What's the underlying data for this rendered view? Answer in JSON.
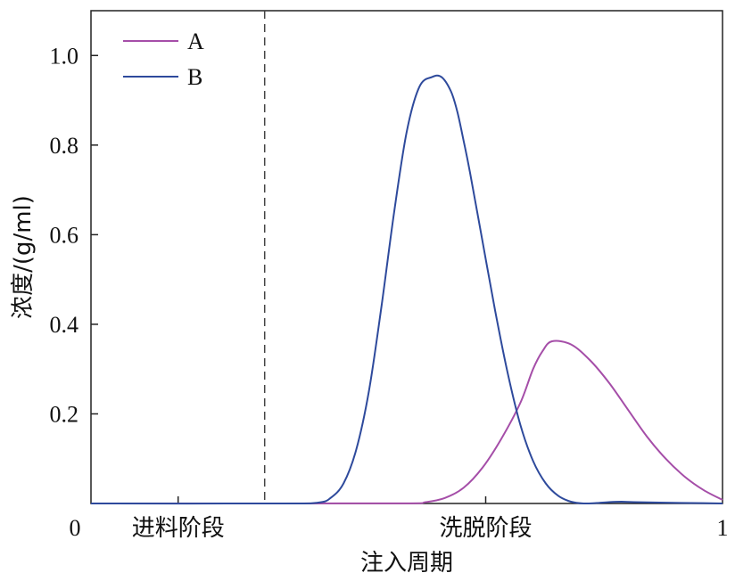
{
  "chart_data": {
    "type": "line",
    "xlabel": "注入周期",
    "ylabel": "浓度/(g/ml)",
    "xlim": [
      0,
      1
    ],
    "ylim": [
      0,
      1.1
    ],
    "x_ticks": [
      {
        "value": 0,
        "label": "0"
      },
      {
        "value": 1,
        "label": "1"
      }
    ],
    "x_minor_ticks": [
      0.138,
      0.625
    ],
    "y_ticks": [
      {
        "value": 0.2,
        "label": "0.2"
      },
      {
        "value": 0.4,
        "label": "0.4"
      },
      {
        "value": 0.6,
        "label": "0.6"
      },
      {
        "value": 0.8,
        "label": "0.8"
      },
      {
        "value": 1.0,
        "label": "1.0"
      }
    ],
    "vline": {
      "x": 0.275,
      "style": "dashed"
    },
    "region_labels": [
      {
        "x": 0.138,
        "text": "进料阶段"
      },
      {
        "x": 0.625,
        "text": "洗脱阶段"
      }
    ],
    "legend_position": "top-left",
    "grid": false,
    "series": [
      {
        "name": "A",
        "color": "#a54ea8",
        "x": [
          0,
          0.3,
          0.5,
          0.53,
          0.56,
          0.59,
          0.62,
          0.65,
          0.68,
          0.7,
          0.715,
          0.73,
          0.76,
          0.79,
          0.82,
          0.85,
          0.88,
          0.91,
          0.94,
          0.97,
          1.0
        ],
        "y": [
          0,
          0,
          0.0003,
          0.003,
          0.012,
          0.035,
          0.08,
          0.145,
          0.225,
          0.3,
          0.34,
          0.362,
          0.355,
          0.32,
          0.27,
          0.21,
          0.15,
          0.1,
          0.06,
          0.03,
          0.008
        ]
      },
      {
        "name": "B",
        "color": "#2e4a9c",
        "x": [
          0,
          0.3,
          0.36,
          0.38,
          0.4,
          0.42,
          0.44,
          0.46,
          0.48,
          0.5,
          0.52,
          0.54,
          0.555,
          0.57,
          0.58,
          0.59,
          0.6,
          0.62,
          0.64,
          0.66,
          0.68,
          0.7,
          0.72,
          0.74,
          0.76,
          0.78,
          0.8,
          0.82,
          0.84,
          0.86,
          0.9,
          0.95,
          1.0
        ],
        "y": [
          0,
          0,
          0.002,
          0.013,
          0.045,
          0.12,
          0.25,
          0.44,
          0.65,
          0.83,
          0.93,
          0.952,
          0.952,
          0.92,
          0.875,
          0.81,
          0.74,
          0.585,
          0.43,
          0.29,
          0.175,
          0.095,
          0.045,
          0.017,
          0.004,
          0.0,
          0.001,
          0.003,
          0.004,
          0.003,
          0.002,
          0.001,
          0.0
        ]
      }
    ]
  }
}
